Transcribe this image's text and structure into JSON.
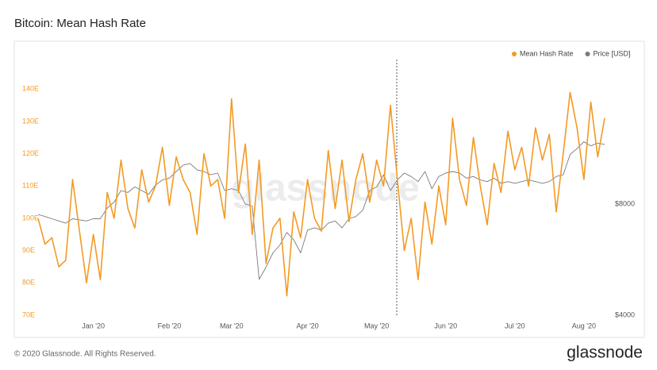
{
  "chart_data": {
    "type": "line",
    "title": "Bitcoin: Mean Hash Rate",
    "watermark": "glassnode",
    "footer": "© 2020 Glassnode. All Rights Reserved.",
    "logo": "glassnode",
    "categories": [
      null,
      null,
      null,
      null,
      null,
      null,
      null,
      null,
      "Jan '20",
      null,
      null,
      null,
      null,
      null,
      null,
      null,
      null,
      null,
      null,
      "Feb '20",
      null,
      null,
      null,
      null,
      null,
      null,
      null,
      null,
      "Mar '20",
      null,
      null,
      null,
      null,
      null,
      null,
      null,
      null,
      null,
      null,
      "Apr '20",
      null,
      null,
      null,
      null,
      null,
      null,
      null,
      null,
      null,
      "May '20",
      null,
      null,
      null,
      null,
      null,
      null,
      null,
      null,
      null,
      "Jun '20",
      null,
      null,
      null,
      null,
      null,
      null,
      null,
      null,
      null,
      "Jul '20",
      null,
      null,
      null,
      null,
      null,
      null,
      null,
      null,
      null,
      "Aug '20",
      null,
      null,
      null
    ],
    "series": [
      {
        "name": "Mean Hash Rate",
        "color": "#f39a24",
        "axis": "y",
        "values": [
          100,
          92,
          94,
          85,
          87,
          112,
          96,
          80,
          95,
          81,
          108,
          100,
          118,
          103,
          97,
          115,
          105,
          110,
          122,
          104,
          119,
          112,
          108,
          95,
          120,
          110,
          112,
          100,
          137,
          108,
          123,
          95,
          118,
          86,
          97,
          100,
          76,
          102,
          94,
          112,
          100,
          96,
          121,
          103,
          118,
          99,
          112,
          120,
          105,
          118,
          110,
          135,
          112,
          90,
          100,
          81,
          105,
          92,
          110,
          98,
          131,
          112,
          104,
          125,
          110,
          98,
          117,
          108,
          127,
          115,
          122,
          110,
          128,
          118,
          126,
          102,
          120,
          139,
          128,
          112,
          136,
          119,
          131
        ]
      },
      {
        "name": "Price [USD]",
        "color": "#7a7a7a",
        "axis": "y2",
        "values": [
          7500,
          7400,
          7300,
          7200,
          7100,
          7300,
          7250,
          7200,
          7300,
          7300,
          7800,
          8100,
          8700,
          8600,
          8900,
          8700,
          8500,
          9000,
          9300,
          9400,
          9800,
          10200,
          10300,
          9900,
          9800,
          9600,
          9700,
          8700,
          8800,
          8700,
          8000,
          7900,
          5000,
          5400,
          5900,
          6200,
          6700,
          6400,
          5900,
          6800,
          6900,
          6800,
          7100,
          7200,
          6900,
          7300,
          7400,
          7700,
          8700,
          8900,
          9600,
          8700,
          9300,
          9700,
          9500,
          9200,
          9800,
          8800,
          9500,
          9700,
          9800,
          9700,
          9400,
          9500,
          9300,
          9200,
          9400,
          9100,
          9200,
          9100,
          9200,
          9300,
          9200,
          9100,
          9200,
          9500,
          9600,
          10900,
          11300,
          11800,
          11500,
          11700,
          11600
        ]
      }
    ],
    "ylim": [
      70,
      143
    ],
    "yticks": [
      {
        "value": 70,
        "label": "70E"
      },
      {
        "value": 80,
        "label": "80E"
      },
      {
        "value": 90,
        "label": "90E"
      },
      {
        "value": 100,
        "label": "100E"
      },
      {
        "value": 110,
        "label": "110E"
      },
      {
        "value": 120,
        "label": "120E"
      },
      {
        "value": 130,
        "label": "130E"
      },
      {
        "value": 140,
        "label": "140E"
      }
    ],
    "y2lim": [
      4000,
      17400
    ],
    "y2scale": "log",
    "y2ticks": [
      {
        "value": 4000,
        "label": "$4000"
      },
      {
        "value": 8000,
        "label": "$8000"
      }
    ],
    "grid": false,
    "legend": "top-right"
  }
}
